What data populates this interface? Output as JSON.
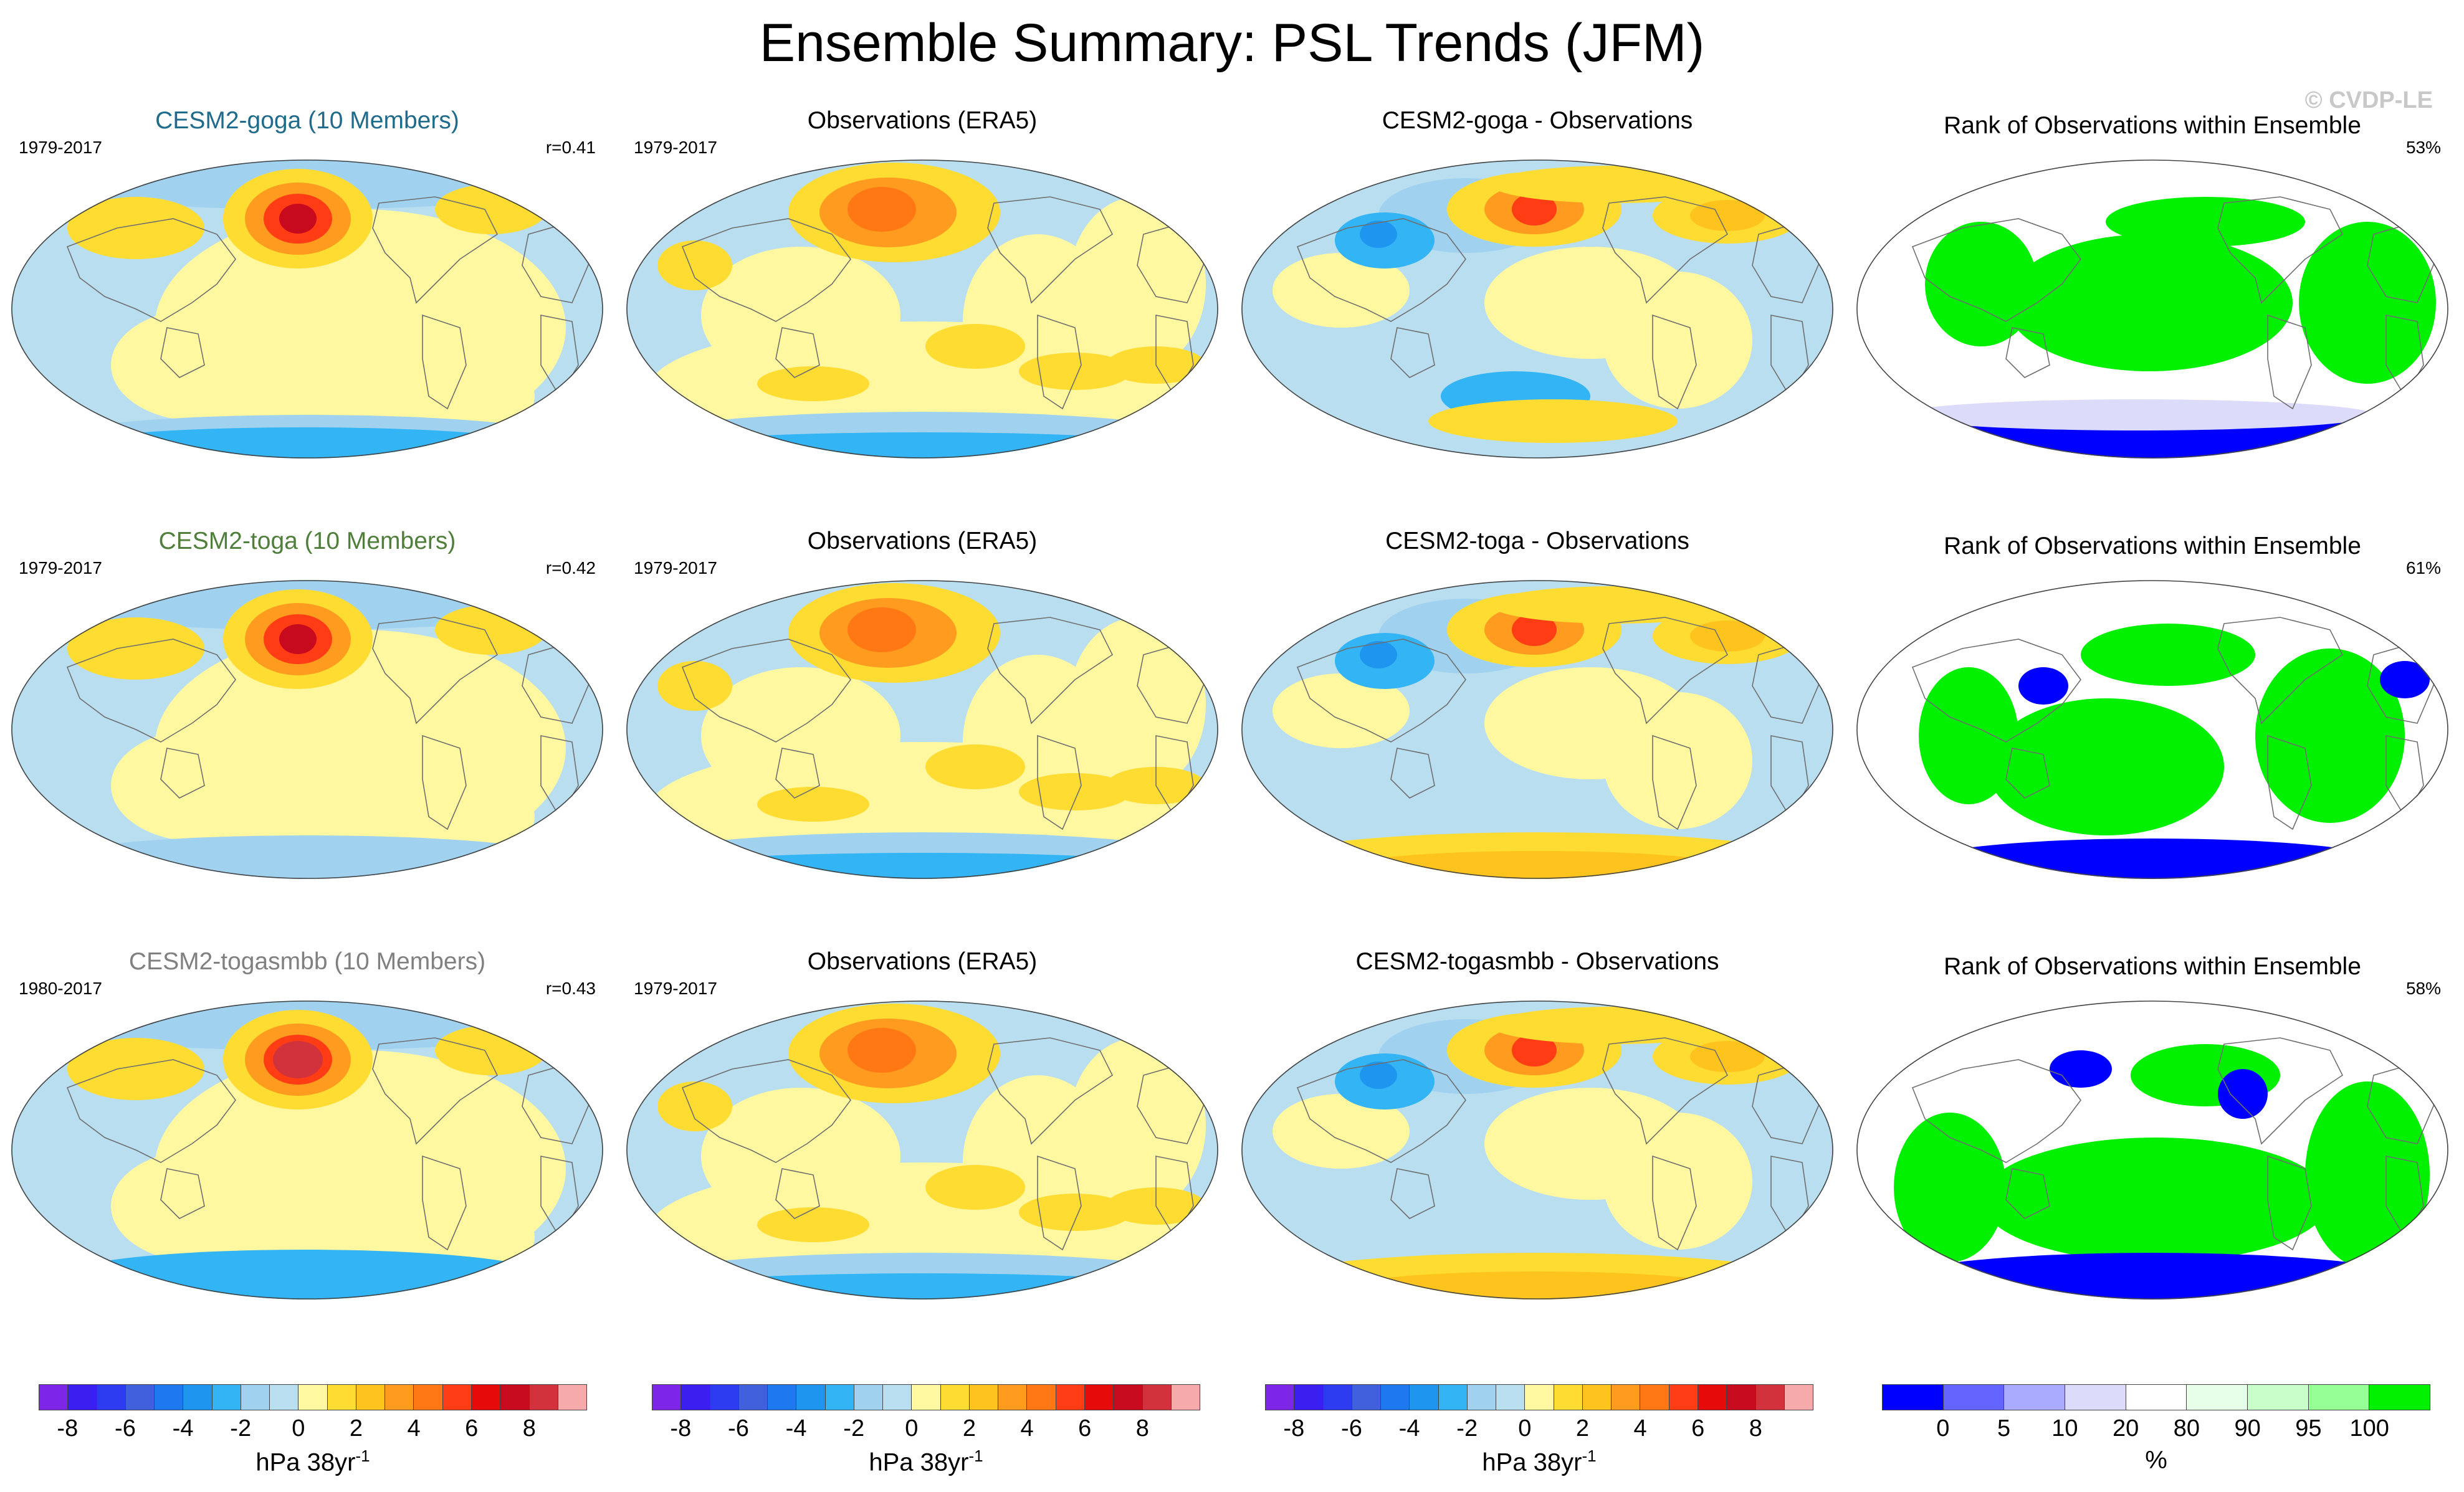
{
  "page": {
    "title": "Ensemble Summary: PSL Trends (JFM)",
    "watermark": "© CVDP-LE"
  },
  "colors": {
    "psl_levels": [
      "#7d26e8",
      "#3b1ef0",
      "#2d3cf0",
      "#4160dc",
      "#1e78f0",
      "#1e96f0",
      "#32b4f5",
      "#a0d2f0",
      "#b9def0",
      "#fff8a0",
      "#ffdc32",
      "#ffc31e",
      "#ff9b1e",
      "#ff7814",
      "#ff3c14",
      "#e60a0a",
      "#c80a1e",
      "#d2323c",
      "#f7aaaa"
    ],
    "rank_levels": [
      "#0000ff",
      "#6464ff",
      "#aaaaff",
      "#dcdcfa",
      "#ffffff",
      "#e6ffe6",
      "#c8ffc8",
      "#96ff96",
      "#00f000"
    ],
    "land_outline": "#6e6e6e"
  },
  "chart_data": [
    {
      "type": "heatmap",
      "row": 1,
      "col": 1,
      "title": "CESM2-goga (10 Members)",
      "title_color": "#1e6b8c",
      "period": "1979-2017",
      "corr": "r=0.41",
      "field": "ensemble_mean_psl_trend",
      "units": "hPa 38yr-1"
    },
    {
      "type": "heatmap",
      "row": 1,
      "col": 2,
      "title": "Observations (ERA5)",
      "title_color": "#000000",
      "period": "1979-2017",
      "corr": "",
      "field": "obs_psl_trend",
      "units": "hPa 38yr-1"
    },
    {
      "type": "heatmap",
      "row": 1,
      "col": 3,
      "title": "CESM2-goga - Observations",
      "title_color": "#000000",
      "period": "",
      "corr": "",
      "field": "difference",
      "units": "hPa 38yr-1"
    },
    {
      "type": "heatmap",
      "row": 1,
      "col": 4,
      "title": "Rank of Observations within Ensemble",
      "title_color": "#000000",
      "period": "",
      "corr": "53%",
      "field": "rank",
      "units": "%"
    },
    {
      "type": "heatmap",
      "row": 2,
      "col": 1,
      "title": "CESM2-toga (10 Members)",
      "title_color": "#4f7f3a",
      "period": "1979-2017",
      "corr": "r=0.42",
      "field": "ensemble_mean_psl_trend",
      "units": "hPa 38yr-1"
    },
    {
      "type": "heatmap",
      "row": 2,
      "col": 2,
      "title": "Observations (ERA5)",
      "title_color": "#000000",
      "period": "1979-2017",
      "corr": "",
      "field": "obs_psl_trend",
      "units": "hPa 38yr-1"
    },
    {
      "type": "heatmap",
      "row": 2,
      "col": 3,
      "title": "CESM2-toga - Observations",
      "title_color": "#000000",
      "period": "",
      "corr": "",
      "field": "difference",
      "units": "hPa 38yr-1"
    },
    {
      "type": "heatmap",
      "row": 2,
      "col": 4,
      "title": "Rank of Observations within Ensemble",
      "title_color": "#000000",
      "period": "",
      "corr": "61%",
      "field": "rank",
      "units": "%"
    },
    {
      "type": "heatmap",
      "row": 3,
      "col": 1,
      "title": "CESM2-togasmbb (10 Members)",
      "title_color": "#808080",
      "period": "1980-2017",
      "corr": "r=0.43",
      "field": "ensemble_mean_psl_trend",
      "units": "hPa 38yr-1"
    },
    {
      "type": "heatmap",
      "row": 3,
      "col": 2,
      "title": "Observations (ERA5)",
      "title_color": "#000000",
      "period": "1979-2017",
      "corr": "",
      "field": "obs_psl_trend",
      "units": "hPa 38yr-1"
    },
    {
      "type": "heatmap",
      "row": 3,
      "col": 3,
      "title": "CESM2-togasmbb - Observations",
      "title_color": "#000000",
      "period": "",
      "corr": "",
      "field": "difference",
      "units": "hPa 38yr-1"
    },
    {
      "type": "heatmap",
      "row": 3,
      "col": 4,
      "title": "Rank of Observations within Ensemble",
      "title_color": "#000000",
      "period": "",
      "corr": "58%",
      "field": "rank",
      "units": "%"
    }
  ],
  "colorbars": [
    {
      "ticks": [
        "-8",
        "-6",
        "-4",
        "-2",
        "0",
        "2",
        "4",
        "6",
        "8"
      ],
      "unit_text": "hPa 38yr",
      "unit_exp": "-1"
    },
    {
      "ticks": [
        "-8",
        "-6",
        "-4",
        "-2",
        "0",
        "2",
        "4",
        "6",
        "8"
      ],
      "unit_text": "hPa 38yr",
      "unit_exp": "-1"
    },
    {
      "ticks": [
        "-8",
        "-6",
        "-4",
        "-2",
        "0",
        "2",
        "4",
        "6",
        "8"
      ],
      "unit_text": "hPa 38yr",
      "unit_exp": "-1"
    },
    {
      "ticks": [
        "0",
        "5",
        "10",
        "20",
        "80",
        "90",
        "95",
        "100"
      ],
      "unit_text": "%",
      "unit_exp": ""
    }
  ]
}
